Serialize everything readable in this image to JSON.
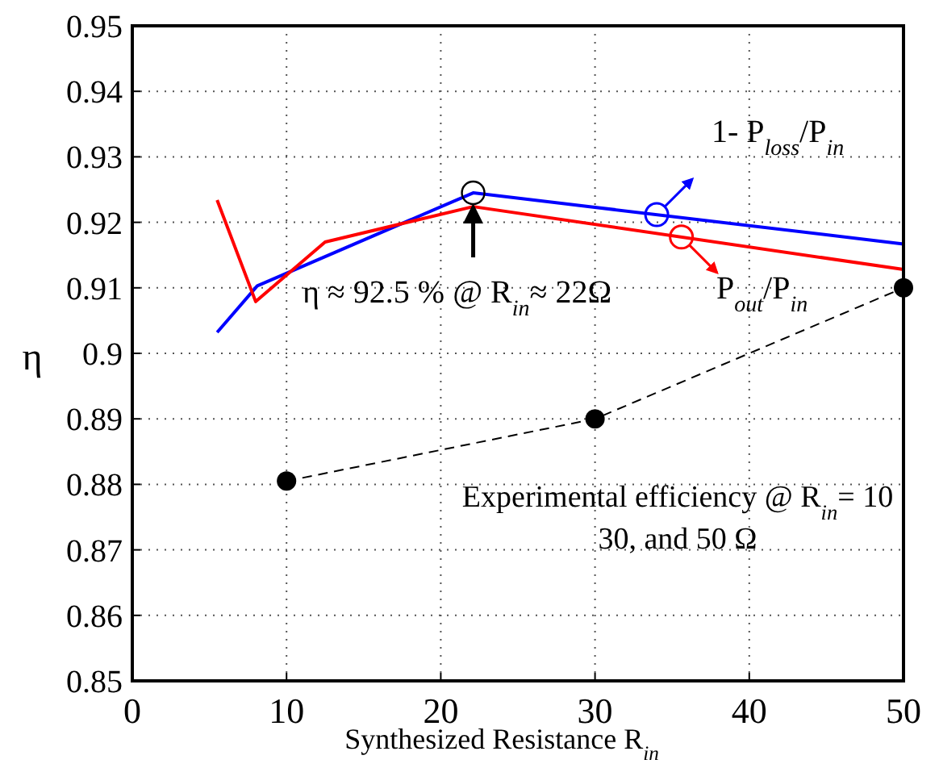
{
  "chart_data": {
    "type": "line",
    "xlabel": "Synthesized Resistance  R$_{in}$",
    "ylabel": "η",
    "xlim": [
      0,
      50
    ],
    "xticks": [
      0,
      10,
      20,
      30,
      40,
      50
    ],
    "ylim": [
      0.85,
      0.95
    ],
    "yticks": [
      0.85,
      0.86,
      0.87,
      0.88,
      0.89,
      0.9,
      0.91,
      0.92,
      0.93,
      0.94,
      0.95
    ],
    "grid": true,
    "series": [
      {
        "name": "1- P$_{loss}$/P$_{in}$",
        "color": "#0000ff",
        "x": [
          5.5,
          8.1,
          22.1,
          50
        ],
        "values": [
          0.9032,
          0.9103,
          0.9245,
          0.9167
        ]
      },
      {
        "name": "P$_{out}$/P$_{in}$",
        "color": "#ff0000",
        "x": [
          5.5,
          8,
          12.5,
          22.1,
          50
        ],
        "values": [
          0.9234,
          0.9079,
          0.917,
          0.9224,
          0.9128
        ]
      },
      {
        "color": "#000000",
        "x": [
          10,
          30,
          50
        ],
        "values": [
          0.8805,
          0.89,
          0.91
        ],
        "marker": "circle",
        "line_style": "dashed"
      }
    ],
    "annotations": [
      {
        "text": "η ≈ 92.5 % @ R$_{in}$≈ 22Ω",
        "x": 22.1,
        "y": 0.9245
      },
      "Experimental efficiency @ R$_{in}$= 10",
      "30, and 50 Ω"
    ]
  }
}
